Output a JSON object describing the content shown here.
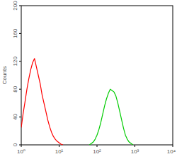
{
  "chart_data": {
    "type": "line",
    "log": "x",
    "y_label": "Counts",
    "x": [
      1,
      1.122,
      1.259,
      1.413,
      1.585,
      1.778,
      1.995,
      2.239,
      2.512,
      2.818,
      3.162,
      3.548,
      3.981,
      4.467,
      5.012,
      5.623,
      6.31,
      7.079,
      7.943,
      8.913,
      10,
      11.22,
      12.59,
      63.1,
      70.79,
      79.43,
      89.13,
      100,
      112.2,
      125.9,
      141.3,
      158.5,
      177.8,
      199.5,
      223.9,
      251.2,
      281.8,
      316.2,
      354.8,
      398.1,
      446.7,
      501.2,
      562.3,
      631,
      707.9,
      794.3,
      891.3
    ],
    "series": [
      {
        "color": "#ff0000",
        "values": [
          25,
          45,
          62,
          80,
          95,
          108,
          118,
          124,
          112,
          100,
          88,
          72,
          60,
          48,
          36,
          26,
          18,
          12,
          8,
          5,
          3,
          1,
          0,
          null,
          null,
          null,
          null,
          null,
          null,
          null,
          null,
          null,
          null,
          null,
          null,
          null,
          null,
          null,
          null,
          null,
          null,
          null,
          null,
          null,
          null,
          null,
          null
        ]
      },
      {
        "color": "#00cc00",
        "values": [
          null,
          null,
          null,
          null,
          null,
          null,
          null,
          null,
          null,
          null,
          null,
          null,
          null,
          null,
          null,
          null,
          null,
          null,
          null,
          null,
          null,
          null,
          null,
          0,
          2,
          4,
          8,
          14,
          22,
          32,
          44,
          56,
          66,
          74,
          80,
          78,
          76,
          70,
          60,
          48,
          36,
          24,
          14,
          8,
          4,
          2,
          0
        ]
      }
    ],
    "xlim": [
      1,
      10000
    ],
    "xticks": [
      {
        "value": 1,
        "label": "10⁰"
      },
      {
        "value": 10,
        "label": "10¹"
      },
      {
        "value": 100,
        "label": "10²"
      },
      {
        "value": 1000,
        "label": "10³"
      },
      {
        "value": 10000,
        "label": "10⁴"
      }
    ],
    "ylim": [
      0,
      200
    ],
    "yticks": [
      0,
      40,
      80,
      120,
      160,
      200
    ],
    "grid": false
  }
}
